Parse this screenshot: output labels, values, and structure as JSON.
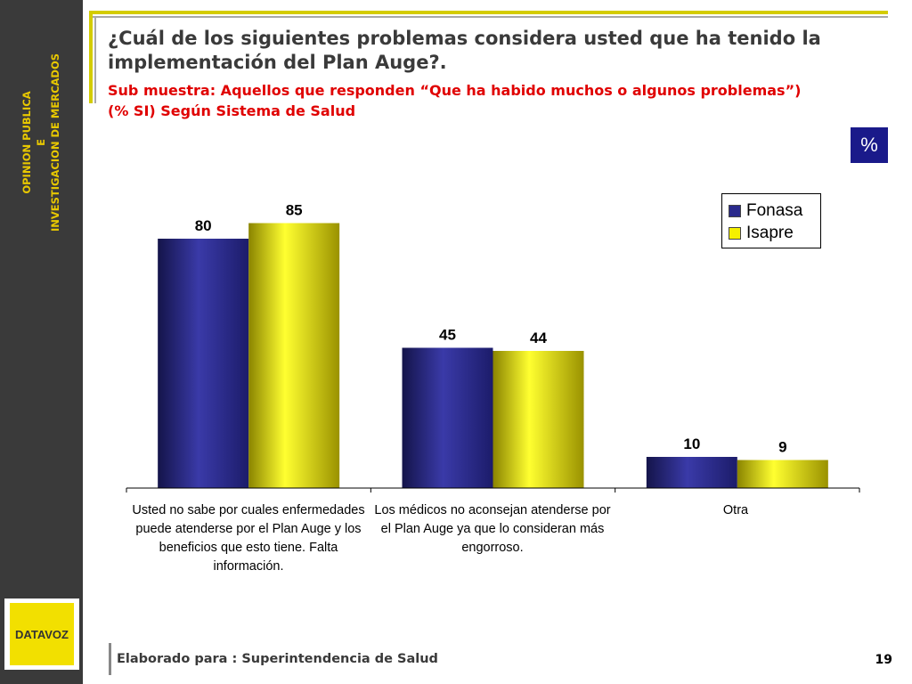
{
  "sidebar": {
    "line1": "OPINION PUBLICA",
    "line2": "E",
    "line3": "INVESTIGACION DE MERCADOS",
    "logo_text": "DATAVOZ"
  },
  "header": {
    "title": "¿Cuál de los siguientes problemas considera usted que ha tenido la implementación del Plan Auge?.",
    "subtitle_line1": "Sub muestra: Aquellos que responden  “Que ha habido muchos o algunos problemas”)",
    "subtitle_line2": "(% SI) Según Sistema de Salud",
    "percent_badge": "%"
  },
  "colors": {
    "fonasa": "#2a2a8c",
    "isapre": "#f5f000",
    "sidebar": "#3a3a3a",
    "accent": "#d4cc00",
    "subtitle": "#e00000"
  },
  "chart_data": {
    "type": "bar",
    "categories": [
      "Usted no sabe por cuales enfermedades puede atenderse por el Plan Auge y los beneficios que esto tiene. Falta información.",
      "Los médicos no aconsejan atenderse por el Plan Auge ya que lo consideran más engorroso.",
      "Otra"
    ],
    "series": [
      {
        "name": "Fonasa",
        "values": [
          80,
          45,
          10
        ]
      },
      {
        "name": "Isapre",
        "values": [
          85,
          44,
          9
        ]
      }
    ],
    "ylim": [
      0,
      100
    ],
    "grid": false,
    "legend_position": "top-right"
  },
  "footer": {
    "text": "Elaborado para : Superintendencia de Salud",
    "page_number": "19"
  }
}
